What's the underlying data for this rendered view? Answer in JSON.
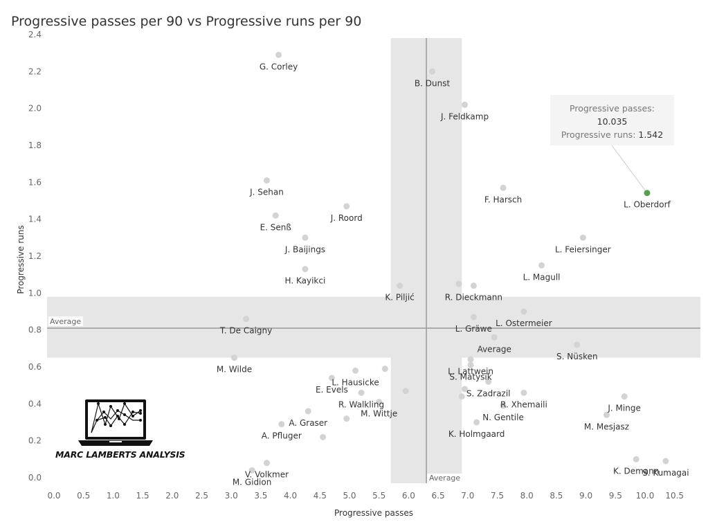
{
  "chart_data": {
    "type": "scatter",
    "title": "Progressive passes per 90 vs Progressive runs per 90",
    "xlabel": "Progressive passes",
    "ylabel": "Progressive runs",
    "xlim": [
      0,
      10.5
    ],
    "ylim": [
      0,
      2.4
    ],
    "x_ticks": [
      "0.0",
      "0.5",
      "1.0",
      "1.5",
      "2.0",
      "2.5",
      "3.0",
      "3.5",
      "4.0",
      "4.5",
      "5.0",
      "5.5",
      "6.0",
      "6.5",
      "7.0",
      "7.5",
      "8.0",
      "8.5",
      "9.0",
      "9.5",
      "10.0",
      "10.5"
    ],
    "y_ticks": [
      "0.0",
      "0.2",
      "0.4",
      "0.6",
      "0.8",
      "1.0",
      "1.2",
      "1.4",
      "1.6",
      "1.8",
      "2.0",
      "2.2",
      "2.4"
    ],
    "average": {
      "x": 6.3,
      "y": 0.81,
      "label": "Average",
      "x_band": [
        5.7,
        6.9
      ],
      "y_band": [
        0.65,
        0.98
      ]
    },
    "highlight_color": "#5a9e52",
    "point_color": "#d3d3d3",
    "points": [
      {
        "name": "G. Corley",
        "x": 3.8,
        "y": 2.29
      },
      {
        "name": "B. Dunst",
        "x": 6.4,
        "y": 2.2
      },
      {
        "name": "J. Feldkamp",
        "x": 6.95,
        "y": 2.02
      },
      {
        "name": "J. Sehan",
        "x": 3.6,
        "y": 1.61
      },
      {
        "name": "F. Harsch",
        "x": 7.6,
        "y": 1.57
      },
      {
        "name": "L. Oberdorf",
        "x": 10.035,
        "y": 1.542,
        "highlight": true
      },
      {
        "name": "J. Roord",
        "x": 4.95,
        "y": 1.47
      },
      {
        "name": "E. Senß",
        "x": 3.75,
        "y": 1.42
      },
      {
        "name": "J. Baijings",
        "x": 4.25,
        "y": 1.3
      },
      {
        "name": "L. Feiersinger",
        "x": 8.95,
        "y": 1.3
      },
      {
        "name": "L. Magull",
        "x": 8.25,
        "y": 1.15
      },
      {
        "name": "H. Kayikci",
        "x": 4.25,
        "y": 1.13
      },
      {
        "name": "R. Dieckmann",
        "x": 7.1,
        "y": 1.04
      },
      {
        "name": "",
        "x": 6.85,
        "y": 1.05
      },
      {
        "name": "K. Piljić",
        "x": 5.85,
        "y": 1.04
      },
      {
        "name": "L. Ostermeier",
        "x": 7.95,
        "y": 0.9
      },
      {
        "name": "T. De Caigny",
        "x": 3.25,
        "y": 0.86
      },
      {
        "name": "L. Gräwe",
        "x": 7.1,
        "y": 0.87
      },
      {
        "name": "Average",
        "x": 7.45,
        "y": 0.76
      },
      {
        "name": "S. Nüsken",
        "x": 8.85,
        "y": 0.72
      },
      {
        "name": "M. Wilde",
        "x": 3.05,
        "y": 0.65
      },
      {
        "name": "L. Lattwein",
        "x": 7.05,
        "y": 0.64
      },
      {
        "name": "S. Matysik",
        "x": 7.05,
        "y": 0.61
      },
      {
        "name": "L. Hausicke",
        "x": 5.1,
        "y": 0.58
      },
      {
        "name": "",
        "x": 5.6,
        "y": 0.59
      },
      {
        "name": "E. Evels",
        "x": 4.7,
        "y": 0.54
      },
      {
        "name": "S. Zadrazil",
        "x": 7.35,
        "y": 0.52
      },
      {
        "name": "R. Xhemaili",
        "x": 7.95,
        "y": 0.46
      },
      {
        "name": "",
        "x": 6.95,
        "y": 0.48
      },
      {
        "name": "R. Walkling",
        "x": 5.2,
        "y": 0.46
      },
      {
        "name": "",
        "x": 5.95,
        "y": 0.47
      },
      {
        "name": "J. Minge",
        "x": 9.65,
        "y": 0.44
      },
      {
        "name": "",
        "x": 6.9,
        "y": 0.44
      },
      {
        "name": "M. Wittje",
        "x": 5.5,
        "y": 0.41
      },
      {
        "name": "N. Gentile",
        "x": 7.6,
        "y": 0.39
      },
      {
        "name": "A. Graser",
        "x": 4.3,
        "y": 0.36
      },
      {
        "name": "M. Mesjasz",
        "x": 9.35,
        "y": 0.34
      },
      {
        "name": "",
        "x": 4.95,
        "y": 0.32
      },
      {
        "name": "K. Holmgaard",
        "x": 7.15,
        "y": 0.3
      },
      {
        "name": "A. Pfluger",
        "x": 3.85,
        "y": 0.29
      },
      {
        "name": "",
        "x": 4.55,
        "y": 0.22
      },
      {
        "name": "V. Volkmer",
        "x": 3.6,
        "y": 0.08
      },
      {
        "name": "M. Gidion",
        "x": 3.35,
        "y": 0.04
      },
      {
        "name": "K. Demann",
        "x": 9.85,
        "y": 0.1
      },
      {
        "name": "S. Kumagai",
        "x": 10.35,
        "y": 0.09
      }
    ],
    "tooltip": {
      "line1": "Progressive passes:",
      "line2": "10.035",
      "line3_label": "Progressive runs:",
      "line3_value": "1.542"
    }
  },
  "logo": {
    "text": "MARC LAMBERTS ANALYSIS",
    "icon": "laptop-chart-icon"
  }
}
